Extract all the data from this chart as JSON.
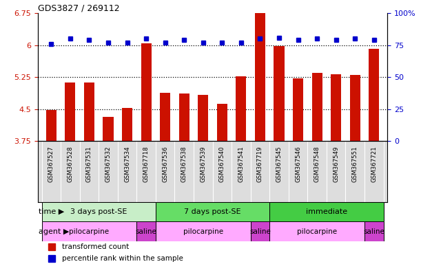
{
  "title": "GDS3827 / 269112",
  "samples": [
    "GSM367527",
    "GSM367528",
    "GSM367531",
    "GSM367532",
    "GSM367534",
    "GSM367718",
    "GSM367536",
    "GSM367538",
    "GSM367539",
    "GSM367540",
    "GSM367541",
    "GSM367719",
    "GSM367545",
    "GSM367546",
    "GSM367548",
    "GSM367549",
    "GSM367551",
    "GSM367721"
  ],
  "red_values": [
    4.47,
    5.12,
    5.12,
    4.32,
    4.52,
    6.05,
    4.88,
    4.87,
    4.84,
    4.62,
    5.27,
    6.75,
    5.98,
    5.22,
    5.35,
    5.32,
    5.3,
    5.92
  ],
  "blue_values": [
    76,
    80,
    79,
    77,
    77,
    80,
    77,
    79,
    77,
    77,
    77,
    80,
    81,
    79,
    80,
    79,
    80,
    79
  ],
  "ylim_left": [
    3.75,
    6.75
  ],
  "ylim_right": [
    0,
    100
  ],
  "yticks_left": [
    3.75,
    4.5,
    5.25,
    6.0,
    6.75
  ],
  "ytick_labels_left": [
    "3.75",
    "4.5",
    "5.25",
    "6",
    "6.75"
  ],
  "yticks_right": [
    0,
    25,
    50,
    75,
    100
  ],
  "ytick_labels_right": [
    "0",
    "25",
    "50",
    "75",
    "100%"
  ],
  "hlines": [
    4.5,
    5.25,
    6.0
  ],
  "time_groups": [
    {
      "label": "3 days post-SE",
      "start": 0,
      "end": 6,
      "color": "#c8eec8"
    },
    {
      "label": "7 days post-SE",
      "start": 6,
      "end": 12,
      "color": "#66dd66"
    },
    {
      "label": "immediate",
      "start": 12,
      "end": 18,
      "color": "#44cc44"
    }
  ],
  "agent_groups": [
    {
      "label": "pilocarpine",
      "start": 0,
      "end": 5,
      "color": "#ffaaff"
    },
    {
      "label": "saline",
      "start": 5,
      "end": 6,
      "color": "#cc44cc"
    },
    {
      "label": "pilocarpine",
      "start": 6,
      "end": 11,
      "color": "#ffaaff"
    },
    {
      "label": "saline",
      "start": 11,
      "end": 12,
      "color": "#cc44cc"
    },
    {
      "label": "pilocarpine",
      "start": 12,
      "end": 17,
      "color": "#ffaaff"
    },
    {
      "label": "saline",
      "start": 17,
      "end": 18,
      "color": "#cc44cc"
    }
  ],
  "red_color": "#cc1100",
  "blue_color": "#0000cc",
  "bar_width": 0.55,
  "n_samples": 18,
  "sample_bg_color": "#dddddd",
  "label_row_color": "#dddddd"
}
